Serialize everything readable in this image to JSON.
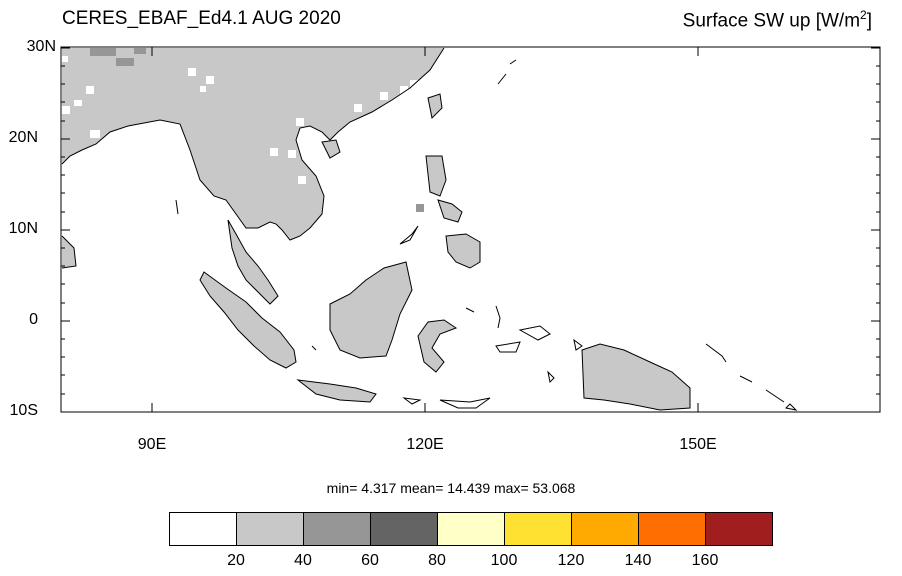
{
  "title": {
    "left": "CERES_EBAF_Ed4.1 AUG 2020",
    "right_main": "Surface SW up [W/m",
    "right_sup": "2",
    "right_end": "]"
  },
  "axes": {
    "lat_labels": [
      "30N",
      "20N",
      "10N",
      "0",
      "10S"
    ],
    "lon_labels": [
      "90E",
      "120E",
      "150E"
    ],
    "lon_range": [
      80,
      170
    ],
    "lat_range": [
      -10,
      30
    ]
  },
  "stats": {
    "text": "min=  4.317  mean=  14.439  max=  53.068"
  },
  "colorbar": {
    "colors": [
      "#ffffff",
      "#c8c8c8",
      "#969696",
      "#646464",
      "#ffffc8",
      "#ffe132",
      "#ffaa00",
      "#ff6e00",
      "#a01e1e"
    ],
    "labels": [
      "20",
      "40",
      "60",
      "80",
      "100",
      "120",
      "140",
      "160"
    ]
  },
  "legend_colors": {
    "land_fill": "#c8c8c8",
    "dark_fill": "#969696",
    "coast": "#000000"
  }
}
